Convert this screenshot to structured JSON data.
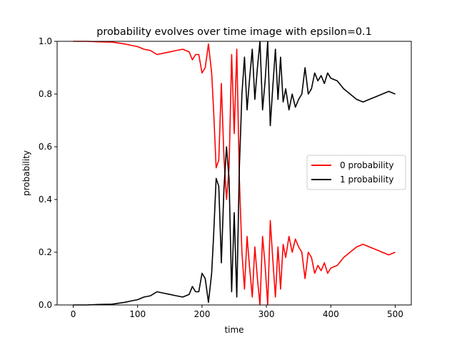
{
  "chart_data": {
    "type": "line",
    "title": "probability evolves over time image with epsilon=0.1",
    "xlabel": "time",
    "ylabel": "probability",
    "xlim": [
      -25,
      525
    ],
    "ylim": [
      0,
      1
    ],
    "xticks": [
      0,
      100,
      200,
      300,
      400,
      500
    ],
    "yticks": [
      0.0,
      0.2,
      0.4,
      0.6,
      0.8,
      1.0
    ],
    "xtick_labels": [
      "0",
      "100",
      "200",
      "300",
      "400",
      "500"
    ],
    "ytick_labels": [
      "0.0",
      "0.2",
      "0.4",
      "0.6",
      "0.8",
      "1.0"
    ],
    "legend_position": "center-right",
    "series": [
      {
        "name": "0 probability",
        "color": "#ff0000",
        "x": [
          0,
          20,
          40,
          60,
          80,
          90,
          100,
          110,
          120,
          130,
          140,
          150,
          160,
          170,
          180,
          185,
          190,
          195,
          200,
          205,
          210,
          215,
          218,
          222,
          226,
          230,
          234,
          238,
          242,
          246,
          250,
          254,
          258,
          262,
          266,
          270,
          274,
          278,
          282,
          286,
          290,
          294,
          298,
          302,
          306,
          310,
          314,
          318,
          322,
          326,
          330,
          335,
          340,
          345,
          350,
          355,
          360,
          365,
          370,
          375,
          380,
          385,
          390,
          395,
          400,
          410,
          420,
          430,
          440,
          450,
          460,
          470,
          480,
          490,
          500
        ],
        "values": [
          1.0,
          1.0,
          0.998,
          0.997,
          0.99,
          0.985,
          0.98,
          0.97,
          0.965,
          0.95,
          0.955,
          0.96,
          0.965,
          0.97,
          0.96,
          0.93,
          0.95,
          0.95,
          0.88,
          0.9,
          0.99,
          0.88,
          0.74,
          0.52,
          0.55,
          0.84,
          0.56,
          0.4,
          0.52,
          0.95,
          0.65,
          0.97,
          0.48,
          0.2,
          0.06,
          0.26,
          0.14,
          0.03,
          0.22,
          0.1,
          0.0,
          0.26,
          0.15,
          0.0,
          0.32,
          0.17,
          0.03,
          0.22,
          0.06,
          0.23,
          0.18,
          0.26,
          0.2,
          0.25,
          0.22,
          0.2,
          0.1,
          0.2,
          0.18,
          0.12,
          0.15,
          0.13,
          0.16,
          0.12,
          0.14,
          0.15,
          0.18,
          0.2,
          0.22,
          0.23,
          0.22,
          0.21,
          0.2,
          0.19,
          0.2
        ]
      },
      {
        "name": "1 probability",
        "color": "#000000",
        "x": [
          0,
          20,
          40,
          60,
          80,
          90,
          100,
          110,
          120,
          130,
          140,
          150,
          160,
          170,
          180,
          185,
          190,
          195,
          200,
          205,
          210,
          215,
          218,
          222,
          226,
          230,
          234,
          238,
          242,
          246,
          250,
          254,
          258,
          262,
          266,
          270,
          274,
          278,
          282,
          286,
          290,
          294,
          298,
          302,
          306,
          310,
          314,
          318,
          322,
          326,
          330,
          335,
          340,
          345,
          350,
          355,
          360,
          365,
          370,
          375,
          380,
          385,
          390,
          395,
          400,
          410,
          420,
          430,
          440,
          450,
          460,
          470,
          480,
          490,
          500
        ],
        "values": [
          0.0,
          0.0,
          0.002,
          0.003,
          0.01,
          0.015,
          0.02,
          0.03,
          0.035,
          0.05,
          0.045,
          0.04,
          0.035,
          0.03,
          0.04,
          0.07,
          0.05,
          0.05,
          0.12,
          0.1,
          0.01,
          0.12,
          0.26,
          0.48,
          0.45,
          0.16,
          0.44,
          0.6,
          0.48,
          0.05,
          0.35,
          0.03,
          0.52,
          0.8,
          0.94,
          0.74,
          0.86,
          0.97,
          0.78,
          0.9,
          1.0,
          0.74,
          0.85,
          1.0,
          0.68,
          0.83,
          0.97,
          0.78,
          0.94,
          0.77,
          0.82,
          0.74,
          0.8,
          0.75,
          0.78,
          0.8,
          0.9,
          0.8,
          0.82,
          0.88,
          0.85,
          0.87,
          0.84,
          0.88,
          0.86,
          0.85,
          0.82,
          0.8,
          0.78,
          0.77,
          0.78,
          0.79,
          0.8,
          0.81,
          0.8
        ]
      }
    ]
  }
}
